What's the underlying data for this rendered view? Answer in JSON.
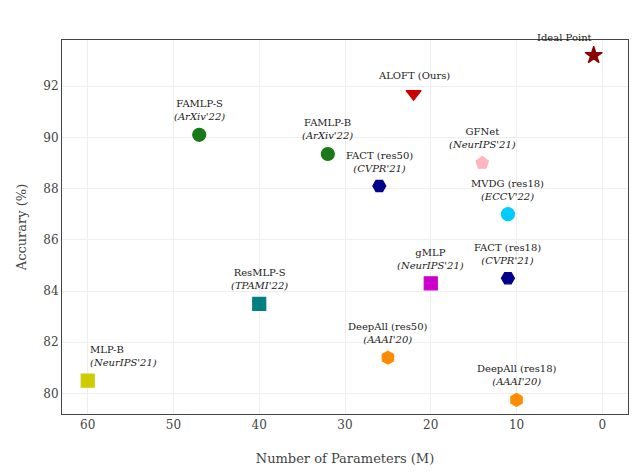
{
  "chart_data": {
    "type": "scatter",
    "xlabel": "Number of Parameters (M)",
    "ylabel": "Accurary (%)",
    "xlim": [
      63,
      -3
    ],
    "ylim": [
      79.2,
      93.8
    ],
    "xticks": [
      60,
      50,
      40,
      30,
      20,
      10,
      0
    ],
    "yticks": [
      80,
      82,
      84,
      86,
      88,
      90,
      92
    ],
    "grid": true,
    "series": [
      {
        "name": "ALOFT (Ours)",
        "annotation": null,
        "color": "#cc0000",
        "marker": "triangle-down",
        "x": [
          22
        ],
        "values": [
          91.7
        ]
      },
      {
        "name": "Ideal Point",
        "annotation": null,
        "color": "#8b0000",
        "marker": "star",
        "x": [
          1.0
        ],
        "values": [
          93.2
        ]
      },
      {
        "name": "FAMLP-S",
        "annotation": "(ArXiv'22)",
        "color": "#1a7a1a",
        "marker": "circle",
        "x": [
          47
        ],
        "values": [
          90.1
        ]
      },
      {
        "name": "FAMLP-B",
        "annotation": "(ArXiv'22)",
        "color": "#1a7a1a",
        "marker": "circle",
        "x": [
          32
        ],
        "values": [
          89.35
        ]
      },
      {
        "name": "GFNet",
        "annotation": "(NeurIPS'21)",
        "color": "#ffb6c1",
        "marker": "pentagon",
        "x": [
          14
        ],
        "values": [
          89.0
        ]
      },
      {
        "name": "FACT (res50)",
        "annotation": "(CVPR'21)",
        "color": "#00008b",
        "marker": "hexagon2",
        "x": [
          26
        ],
        "values": [
          88.1
        ]
      },
      {
        "name": "MVDG (res18)",
        "annotation": "(ECCV'22)",
        "color": "#00ccff",
        "marker": "circle",
        "x": [
          11
        ],
        "values": [
          87.0
        ]
      },
      {
        "name": "gMLP",
        "annotation": "(NeurIPS'21)",
        "color": "#cc00cc",
        "marker": "square",
        "x": [
          20
        ],
        "values": [
          84.3
        ]
      },
      {
        "name": "FACT (res18)",
        "annotation": "(CVPR'21)",
        "color": "#00008b",
        "marker": "hexagon2",
        "x": [
          11
        ],
        "values": [
          84.5
        ]
      },
      {
        "name": "ResMLP-S",
        "annotation": "(TPAMI'22)",
        "color": "#008080",
        "marker": "square",
        "x": [
          40
        ],
        "values": [
          83.5
        ]
      },
      {
        "name": "DeepAll (res50)",
        "annotation": "(AAAI'20)",
        "color": "#ff8c00",
        "marker": "hexagon",
        "x": [
          25
        ],
        "values": [
          81.4
        ]
      },
      {
        "name": "DeepAll (res18)",
        "annotation": "(AAAI'20)",
        "color": "#ff8c00",
        "marker": "hexagon",
        "x": [
          10
        ],
        "values": [
          79.75
        ]
      },
      {
        "name": "MLP-B",
        "annotation": "(NeurIPS'21)",
        "color": "#cccc00",
        "marker": "square",
        "x": [
          60
        ],
        "values": [
          80.5
        ]
      }
    ]
  }
}
